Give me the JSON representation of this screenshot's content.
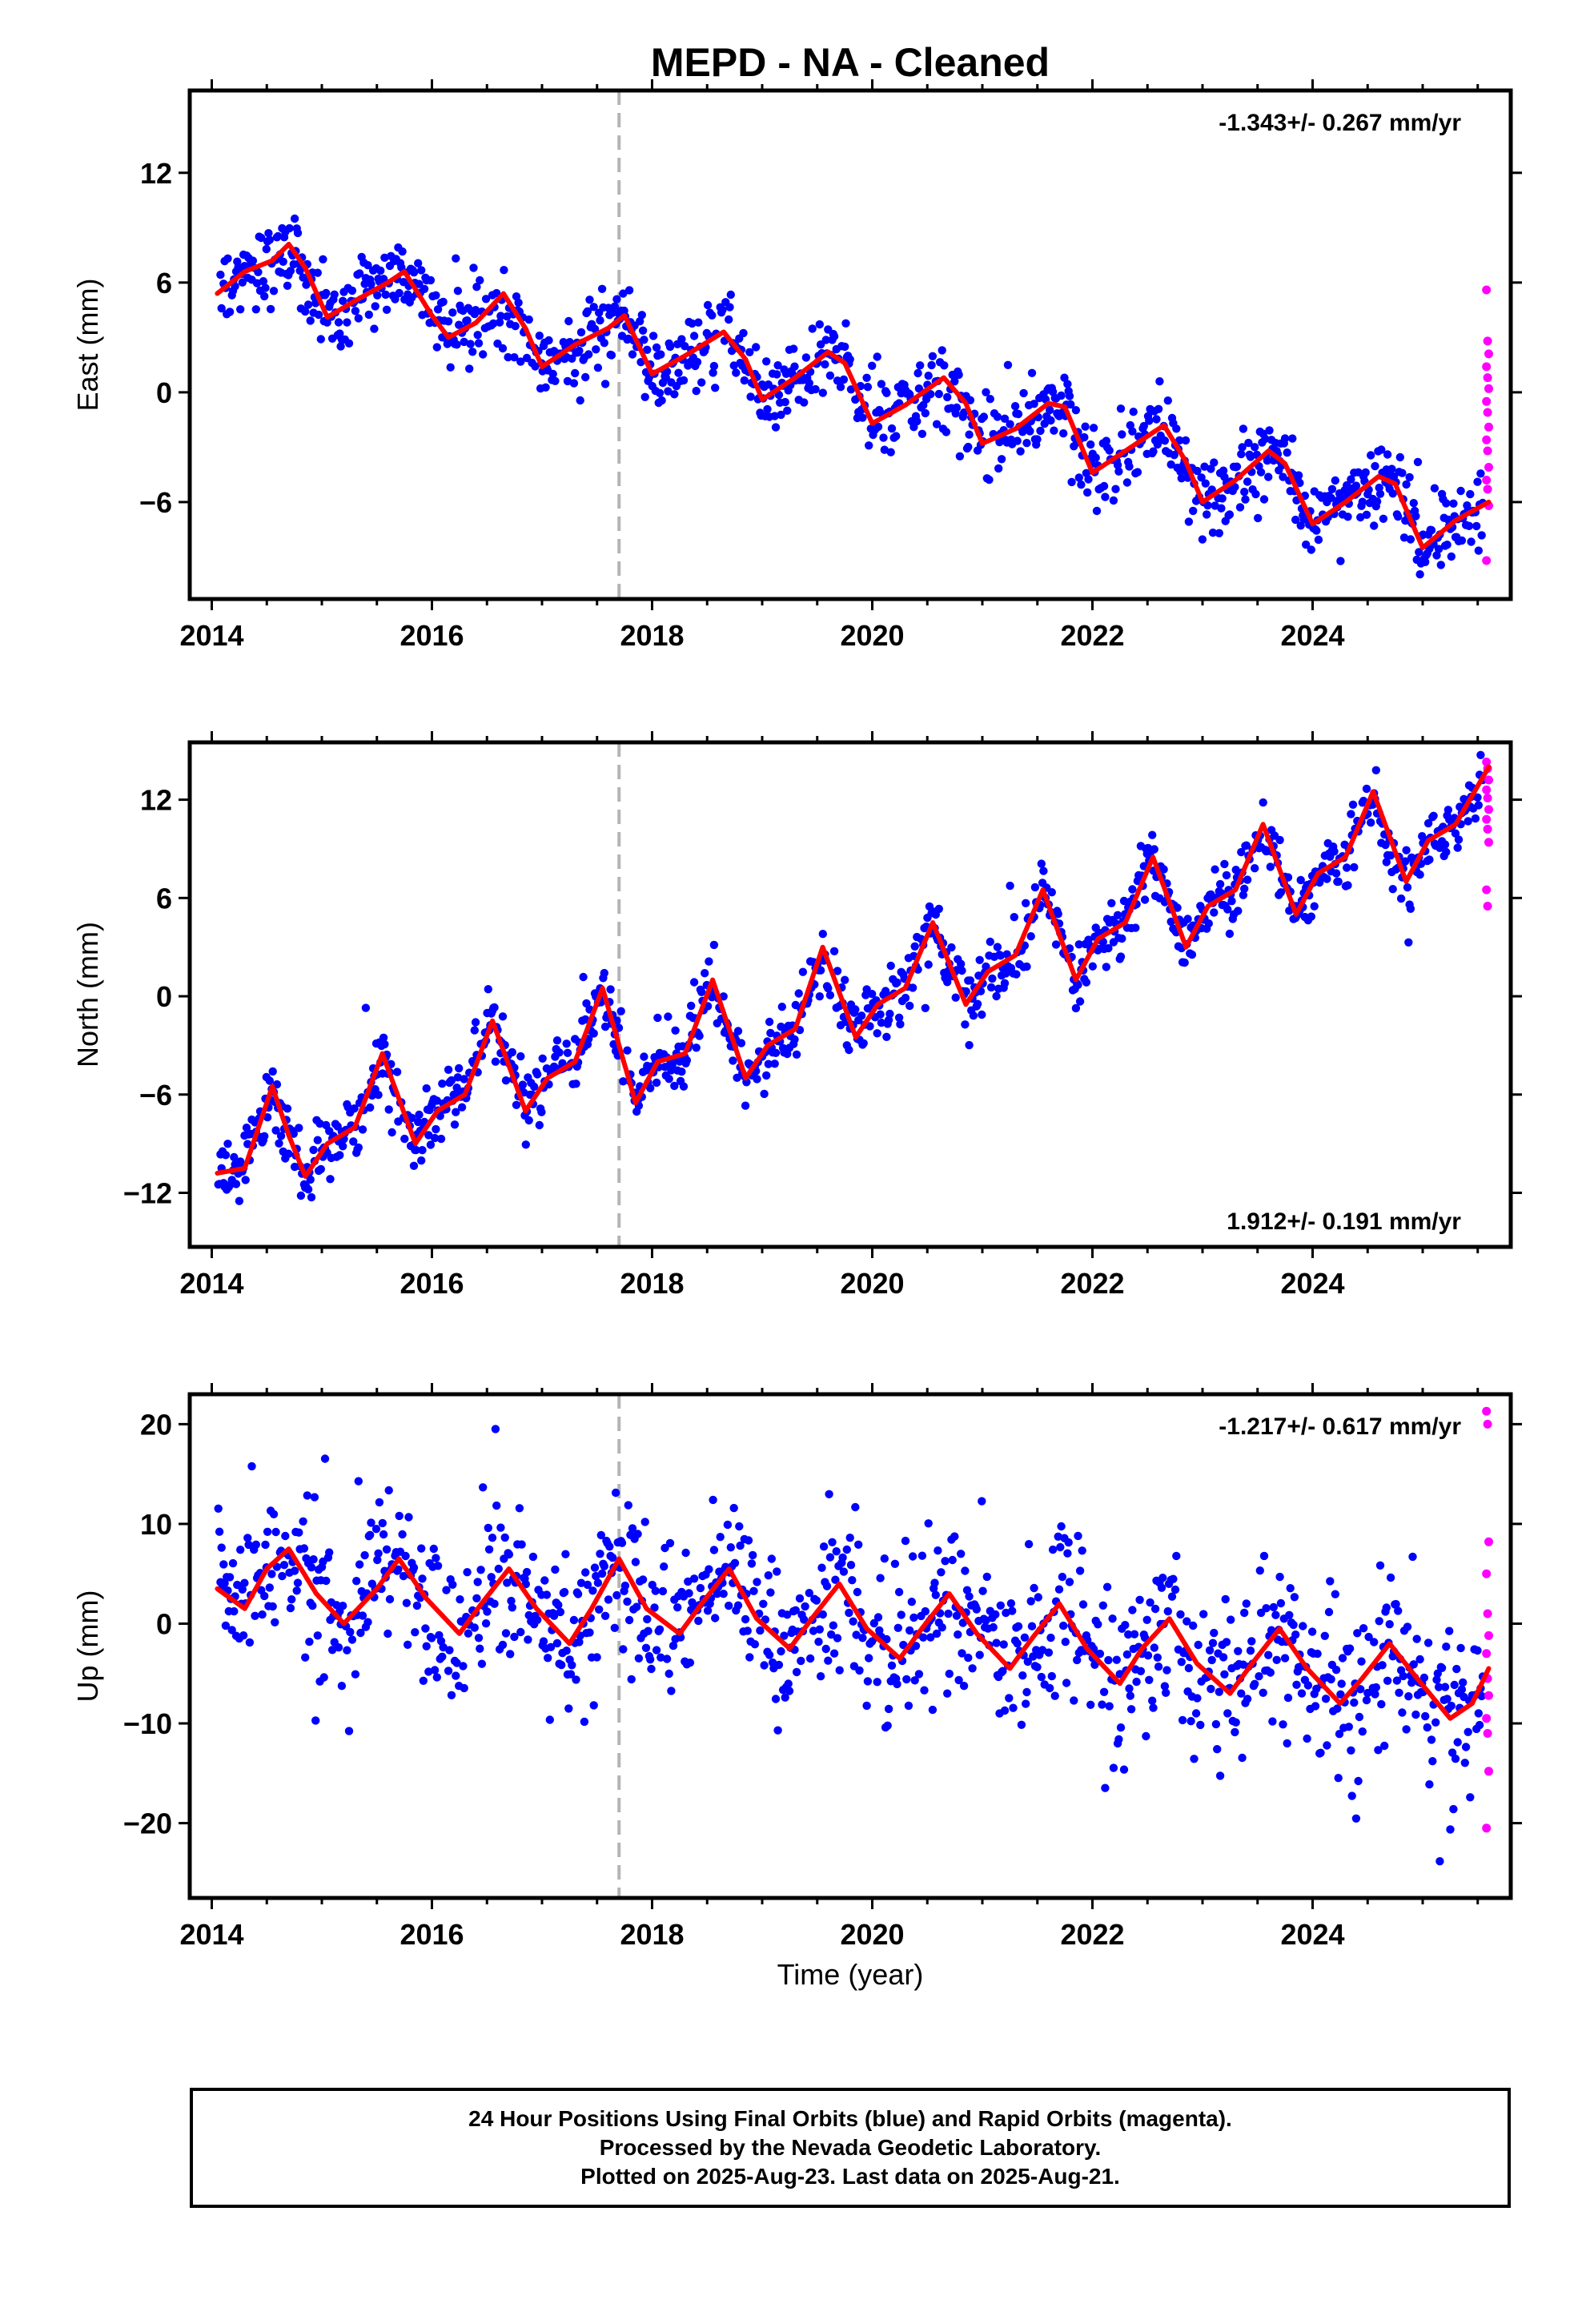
{
  "title": "MEPD  - NA - Cleaned",
  "xlabel": "Time (year)",
  "footer": {
    "line1": "24 Hour Positions Using Final Orbits (blue) and Rapid Orbits (magenta).",
    "line2": "Processed by the Nevada Geodetic Laboratory.",
    "line3": "Plotted on 2025-Aug-23. Last data on 2025-Aug-21."
  },
  "colors": {
    "final": "#0000ff",
    "rapid": "#ff00ff",
    "model": "#ff0000",
    "event_line": "#b4b4b4"
  },
  "chart_data": [
    {
      "type": "scatter",
      "name": "east",
      "ylabel": "East (mm)",
      "rate": "-1.343+/- 0.267 mm/yr",
      "rate_position": "top-right",
      "xlim": [
        2013.8,
        2025.8
      ],
      "ylim": [
        -11.3,
        16.5
      ],
      "xticks": [
        2014,
        2016,
        2018,
        2020,
        2022,
        2024
      ],
      "yticks": [
        -6,
        0,
        6,
        12
      ],
      "event_line_x": 2017.7,
      "model": {
        "x0": 2014.05,
        "y0": 5.3,
        "rate": -1.343,
        "annual_amp": 1.8,
        "annual_phase": 0.7,
        "semi_amp": 0.6,
        "noise": 1.1
      },
      "model_curve_x": [
        2014.05,
        2014.3,
        2014.55,
        2014.7,
        2014.85,
        2015.05,
        2015.3,
        2015.6,
        2015.75,
        2016.0,
        2016.15,
        2016.4,
        2016.65,
        2016.85,
        2017.0,
        2017.3,
        2017.6,
        2017.75,
        2018.0,
        2018.3,
        2018.65,
        2018.85,
        2019.0,
        2019.3,
        2019.6,
        2019.75,
        2020.0,
        2020.3,
        2020.65,
        2020.85,
        2021.0,
        2021.3,
        2021.6,
        2021.75,
        2022.0,
        2022.3,
        2022.65,
        2022.85,
        2023.0,
        2023.3,
        2023.6,
        2023.75,
        2024.0,
        2024.3,
        2024.6,
        2024.75,
        2025.0,
        2025.3,
        2025.6
      ],
      "model_curve_y": [
        5.4,
        6.6,
        7.2,
        8.1,
        6.8,
        4.1,
        5.0,
        6.0,
        6.6,
        4.2,
        3.0,
        3.8,
        5.4,
        3.5,
        1.4,
        2.6,
        3.5,
        4.2,
        1.0,
        2.0,
        3.3,
        1.8,
        -0.4,
        0.8,
        2.2,
        1.6,
        -1.7,
        -0.7,
        0.8,
        -0.6,
        -2.8,
        -2.0,
        -0.6,
        -0.8,
        -4.4,
        -3.2,
        -1.8,
        -3.8,
        -6.0,
        -4.8,
        -3.2,
        -3.9,
        -7.2,
        -6.0,
        -4.6,
        -5.0,
        -8.5,
        -7.0,
        -6.0
      ],
      "rapid_y": [
        5.6,
        2.8,
        2.1,
        1.4,
        0.8,
        0.2,
        -0.5,
        -1.1,
        -1.9,
        -2.6,
        -3.2,
        -4.1,
        -4.8,
        -5.3,
        -6.2,
        -9.2
      ]
    },
    {
      "type": "scatter",
      "name": "north",
      "ylabel": "North (mm)",
      "rate": "1.912+/- 0.191 mm/yr",
      "rate_position": "bottom-right",
      "xlim": [
        2013.8,
        2025.8
      ],
      "ylim": [
        -15.3,
        15.5
      ],
      "xticks": [
        2014,
        2016,
        2018,
        2020,
        2022,
        2024
      ],
      "yticks": [
        -12,
        -6,
        0,
        6,
        12
      ],
      "event_line_x": 2017.7,
      "model_curve_x": [
        2014.05,
        2014.3,
        2014.55,
        2014.7,
        2014.85,
        2015.05,
        2015.3,
        2015.55,
        2015.85,
        2016.05,
        2016.3,
        2016.55,
        2016.85,
        2017.05,
        2017.3,
        2017.55,
        2017.85,
        2018.05,
        2018.3,
        2018.55,
        2018.85,
        2019.05,
        2019.3,
        2019.55,
        2019.85,
        2020.05,
        2020.3,
        2020.55,
        2020.85,
        2021.05,
        2021.3,
        2021.55,
        2021.85,
        2022.05,
        2022.3,
        2022.55,
        2022.85,
        2023.05,
        2023.3,
        2023.55,
        2023.85,
        2024.05,
        2024.3,
        2024.55,
        2024.85,
        2025.05,
        2025.3,
        2025.6
      ],
      "model_curve_y": [
        -10.8,
        -10.5,
        -5.5,
        -8.5,
        -11.0,
        -9.0,
        -8.0,
        -3.5,
        -9.0,
        -7.0,
        -6.0,
        -1.5,
        -7.0,
        -5.0,
        -4.0,
        0.5,
        -6.5,
        -4.0,
        -3.5,
        1.0,
        -5.0,
        -3.0,
        -2.0,
        3.0,
        -2.5,
        -0.5,
        0.5,
        4.5,
        -0.5,
        1.5,
        2.5,
        6.5,
        1.0,
        3.5,
        4.5,
        8.5,
        3.0,
        5.5,
        6.5,
        10.5,
        5.0,
        7.5,
        8.5,
        12.5,
        7.0,
        9.5,
        10.5,
        14.0
      ],
      "rapid_y": [
        14.3,
        13.9,
        13.2,
        12.6,
        12.1,
        11.4,
        10.8,
        10.2,
        9.4,
        6.5,
        5.5
      ],
      "noise": 1.0
    },
    {
      "type": "scatter",
      "name": "up",
      "ylabel": "Up (mm)",
      "rate": "-1.217+/- 0.617 mm/yr",
      "rate_position": "top-right",
      "xlim": [
        2013.8,
        2025.8
      ],
      "ylim": [
        -27.5,
        23
      ],
      "xticks": [
        2014,
        2016,
        2018,
        2020,
        2022,
        2024
      ],
      "yticks": [
        -20,
        -10,
        0,
        10,
        20
      ],
      "event_line_x": 2017.7,
      "model_curve_x": [
        2014.05,
        2014.3,
        2014.5,
        2014.7,
        2014.95,
        2015.2,
        2015.5,
        2015.7,
        2015.95,
        2016.25,
        2016.45,
        2016.7,
        2016.95,
        2017.25,
        2017.45,
        2017.7,
        2017.95,
        2018.25,
        2018.45,
        2018.7,
        2018.95,
        2019.25,
        2019.45,
        2019.7,
        2019.95,
        2020.25,
        2020.45,
        2020.7,
        2020.95,
        2021.25,
        2021.45,
        2021.7,
        2021.95,
        2022.25,
        2022.45,
        2022.7,
        2022.95,
        2023.25,
        2023.45,
        2023.7,
        2023.95,
        2024.25,
        2024.45,
        2024.7,
        2024.95,
        2025.25,
        2025.45,
        2025.6
      ],
      "model_curve_y": [
        3.5,
        1.5,
        5.5,
        7.5,
        3.0,
        0.0,
        3.5,
        6.5,
        2.5,
        -1.0,
        2.0,
        5.5,
        1.5,
        -2.0,
        1.5,
        6.5,
        1.5,
        -1.0,
        2.0,
        5.5,
        0.5,
        -2.5,
        0.5,
        4.0,
        -0.5,
        -3.5,
        -0.5,
        3.0,
        -1.0,
        -4.5,
        -1.5,
        2.0,
        -2.5,
        -6.0,
        -2.5,
        0.5,
        -4.0,
        -7.0,
        -4.0,
        -0.5,
        -4.5,
        -8.0,
        -5.5,
        -2.0,
        -5.5,
        -9.5,
        -8.0,
        -4.5
      ],
      "rapid_y": [
        21.3,
        20.0,
        8.2,
        5.0,
        1.0,
        -1.2,
        -3.0,
        -5.5,
        -7.2,
        -9.5,
        -11.0,
        -14.8,
        -20.5
      ],
      "noise": 4.0
    }
  ]
}
